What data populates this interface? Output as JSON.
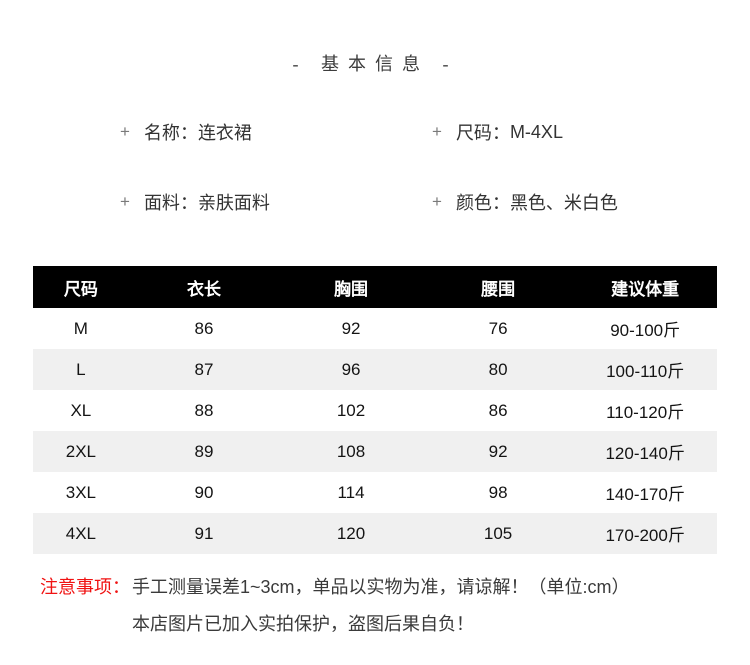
{
  "colors": {
    "table_header_bg": "#000000",
    "table_header_text": "#ffffff",
    "table_alt_row_bg": "#f0f0f0",
    "notice_label_red": "#f01212"
  },
  "header": {
    "title": "- 基本信息 -"
  },
  "basic_info": {
    "bullet": "+",
    "separator": "：",
    "items": [
      {
        "label": "名称",
        "value": "连衣裙"
      },
      {
        "label": "尺码",
        "value": "M-4XL"
      },
      {
        "label": "面料",
        "value": "亲肤面料"
      },
      {
        "label": "颜色",
        "value": "黑色、米白色"
      }
    ]
  },
  "size_table": {
    "columns": [
      "尺码",
      "衣长",
      "胸围",
      "腰围",
      "建议体重"
    ],
    "rows": [
      [
        "M",
        "86",
        "92",
        "76",
        "90-100斤"
      ],
      [
        "L",
        "87",
        "96",
        "80",
        "100-110斤"
      ],
      [
        "XL",
        "88",
        "102",
        "86",
        "110-120斤"
      ],
      [
        "2XL",
        "89",
        "108",
        "92",
        "120-140斤"
      ],
      [
        "3XL",
        "90",
        "114",
        "98",
        "140-170斤"
      ],
      [
        "4XL",
        "91",
        "120",
        "105",
        "170-200斤"
      ]
    ]
  },
  "notice": {
    "label": "注意事项：",
    "line1": "手工测量误差1~3cm，单品以实物为准，请谅解！（单位:cm）",
    "line2": "本店图片已加入实拍保护，盗图后果自负！"
  }
}
